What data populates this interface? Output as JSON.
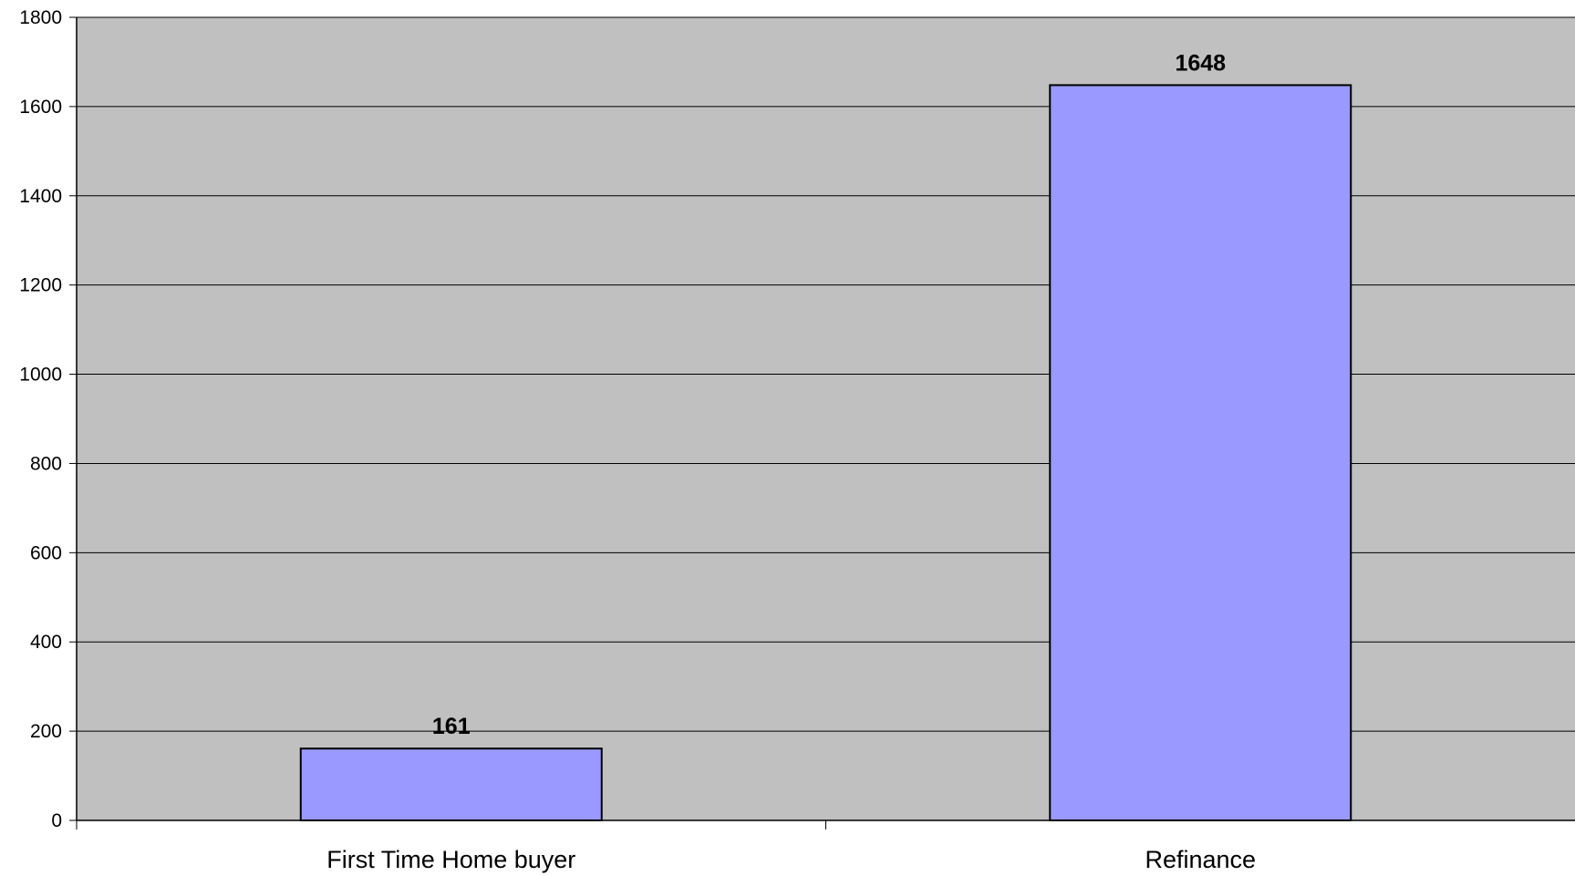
{
  "chart_data": {
    "type": "bar",
    "title": "",
    "xlabel": "",
    "ylabel": "",
    "categories": [
      "First Time Home buyer",
      "Refinance"
    ],
    "values": [
      161,
      1648
    ],
    "data_labels": [
      "161",
      "1648"
    ],
    "ylim": [
      0,
      1800
    ],
    "yticks": [
      0,
      200,
      400,
      600,
      800,
      1000,
      1200,
      1400,
      1600,
      1800
    ],
    "ytick_labels": [
      "0",
      "200",
      "400",
      "600",
      "800",
      "1000",
      "1200",
      "1400",
      "1600",
      "1800"
    ],
    "grid": true,
    "legend": "none",
    "colors": {
      "plot_background": "#c0c0c0",
      "bar_fill": "#9999ff",
      "bar_stroke": "#000000",
      "gridline": "#000000"
    }
  }
}
